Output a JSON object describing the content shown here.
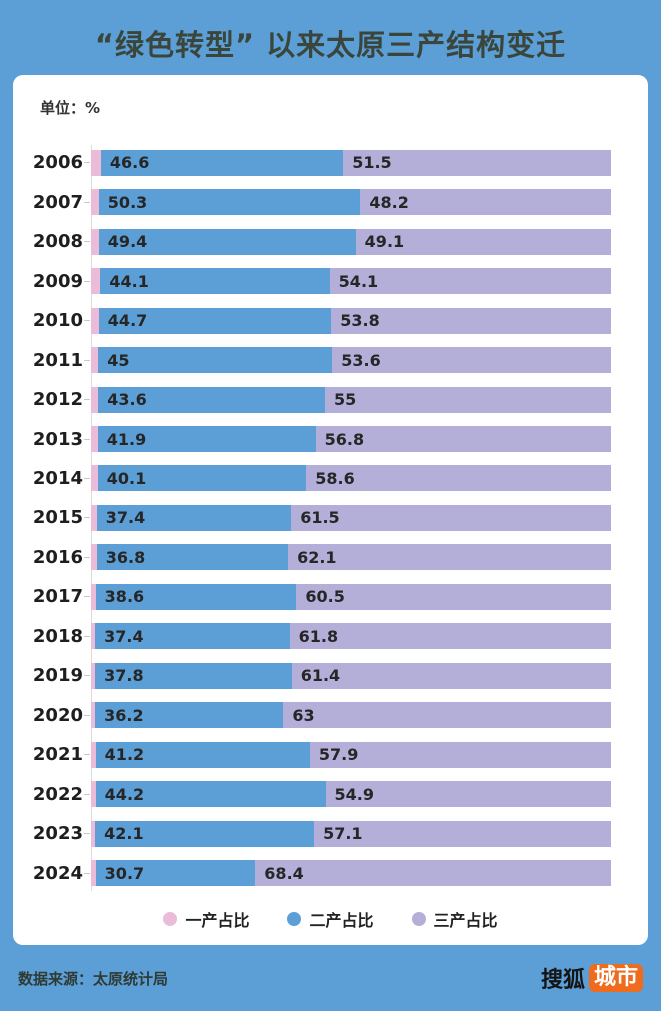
{
  "title": "“绿色转型” 以来太原三产结构变迁",
  "unit_label": "单位：%",
  "legend": [
    {
      "label": "一产占比",
      "color": "#ebbcd8"
    },
    {
      "label": "二产占比",
      "color": "#5c9fd6"
    },
    {
      "label": "三产占比",
      "color": "#b4afd9"
    }
  ],
  "footer": {
    "source": "数据来源：太原统计局",
    "logo_text": "搜狐",
    "logo_badge": "城市"
  },
  "colors": {
    "page_background": "#5c9fd6",
    "panel_background": "#ffffff",
    "primary_pink": "#ebbcd8",
    "secondary_blue": "#5c9fd6",
    "tertiary_purple": "#b4afd9",
    "badge_orange": "#ef6b1e",
    "title_text": "#3a453c"
  },
  "chart_data": {
    "type": "bar",
    "orientation": "horizontal",
    "stacked": true,
    "title": "“绿色转型” 以来太原三产结构变迁",
    "unit": "%",
    "xlim": [
      0,
      100
    ],
    "grid": false,
    "legend_position": "bottom",
    "categories": [
      "2006",
      "2007",
      "2008",
      "2009",
      "2010",
      "2011",
      "2012",
      "2013",
      "2014",
      "2015",
      "2016",
      "2017",
      "2018",
      "2019",
      "2020",
      "2021",
      "2022",
      "2023",
      "2024"
    ],
    "series": [
      {
        "name": "一产占比",
        "show_value_labels": false,
        "values": [
          1.9,
          1.5,
          1.5,
          1.8,
          1.5,
          1.4,
          1.4,
          1.3,
          1.3,
          1.1,
          1.1,
          0.9,
          0.8,
          0.8,
          0.8,
          0.9,
          0.9,
          0.8,
          0.9
        ]
      },
      {
        "name": "二产占比",
        "show_value_labels": true,
        "values": [
          46.6,
          50.3,
          49.4,
          44.1,
          44.7,
          45,
          43.6,
          41.9,
          40.1,
          37.4,
          36.8,
          38.6,
          37.4,
          37.8,
          36.2,
          41.2,
          44.2,
          42.1,
          30.7
        ]
      },
      {
        "name": "三产占比",
        "show_value_labels": true,
        "values": [
          51.5,
          48.2,
          49.1,
          54.1,
          53.8,
          53.6,
          55,
          56.8,
          58.6,
          61.5,
          62.1,
          60.5,
          61.8,
          61.4,
          63,
          57.9,
          54.9,
          57.1,
          68.4
        ]
      }
    ]
  }
}
